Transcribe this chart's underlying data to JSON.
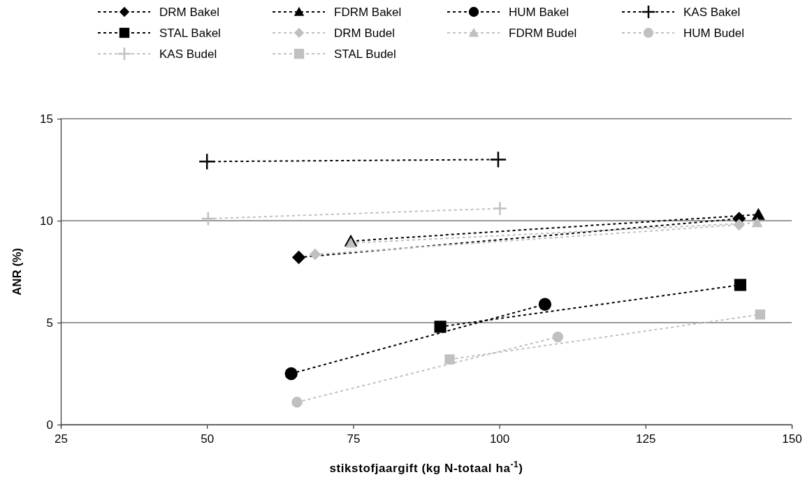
{
  "chart_data": {
    "type": "line",
    "xlabel": "stikstofjaargift (kg N-totaal ha$^{-1}$)",
    "ylabel": "ANR (%)",
    "xlim": [
      25,
      150
    ],
    "xticks": [
      25,
      50,
      75,
      100,
      125,
      150
    ],
    "ylim": [
      0,
      15
    ],
    "yticks": [
      0,
      5,
      10,
      15
    ],
    "grid": "y",
    "legend": "top",
    "line_style": "dashed",
    "series": [
      {
        "name": "DRM Bakel",
        "color": "#000000",
        "marker": "diamond",
        "x": [
          65.7,
          141
        ],
        "values": [
          8.2,
          10.1
        ]
      },
      {
        "name": "FDRM Bakel",
        "color": "#000000",
        "marker": "triangle",
        "x": [
          74.6,
          144.3
        ],
        "values": [
          9.0,
          10.3
        ]
      },
      {
        "name": "HUM Bakel",
        "color": "#000000",
        "marker": "circle",
        "x": [
          64.4,
          107.8
        ],
        "values": [
          2.5,
          5.9
        ]
      },
      {
        "name": "KAS Bakel",
        "color": "#000000",
        "marker": "cross",
        "x": [
          50,
          99.8
        ],
        "values": [
          12.9,
          13.0
        ]
      },
      {
        "name": "STAL Bakel",
        "color": "#000000",
        "marker": "square",
        "x": [
          89.9,
          141.2
        ],
        "values": [
          4.8,
          6.85
        ]
      },
      {
        "name": "DRM Budel",
        "color": "#c0c0c0",
        "marker": "diamond",
        "x": [
          68.5,
          141
        ],
        "values": [
          8.35,
          9.8
        ]
      },
      {
        "name": "FDRM Budel",
        "color": "#c0c0c0",
        "marker": "triangle",
        "x": [
          74.6,
          144.1
        ],
        "values": [
          8.9,
          9.9
        ]
      },
      {
        "name": "HUM Budel",
        "color": "#c0c0c0",
        "marker": "circle",
        "x": [
          65.4,
          110
        ],
        "values": [
          1.1,
          4.3
        ]
      },
      {
        "name": "KAS Budel",
        "color": "#c0c0c0",
        "marker": "cross",
        "x": [
          50.2,
          100.1
        ],
        "values": [
          10.1,
          10.6
        ]
      },
      {
        "name": "STAL Budel",
        "color": "#c0c0c0",
        "marker": "square",
        "x": [
          91.5,
          144.6
        ],
        "values": [
          3.2,
          5.4
        ]
      }
    ]
  }
}
